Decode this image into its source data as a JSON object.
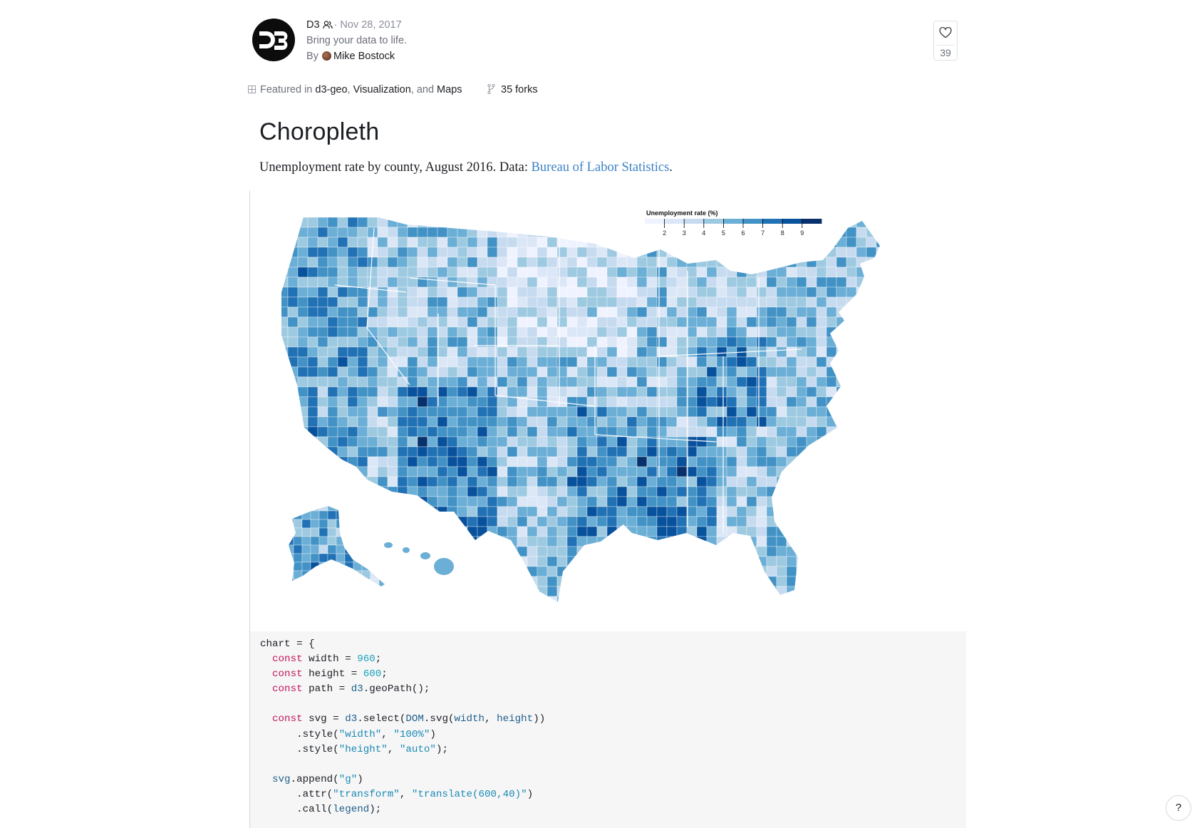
{
  "header": {
    "author_name": "D3",
    "date": "Nov 28, 2017",
    "tagline": "Bring your data to life.",
    "by_label": "By",
    "user": "Mike Bostock",
    "likes": "39",
    "featured_prefix": "Featured in",
    "featured_tags": [
      "d3-geo",
      "Visualization",
      "Maps"
    ],
    "featured_sep1": ",",
    "featured_and": ", and",
    "forks": "35 forks"
  },
  "notebook": {
    "title": "Choropleth",
    "subtitle_text": "Unemployment rate by county, August 2016. Data:",
    "subtitle_link": "Bureau of Labor Statistics",
    "subtitle_end": "."
  },
  "chart_data": {
    "type": "heatmap",
    "title": "Unemployment rate (%)",
    "legend_ticks": [
      "2",
      "3",
      "4",
      "5",
      "6",
      "7",
      "8",
      "9"
    ],
    "color_scale": [
      "#eff3ff",
      "#dbe7f6",
      "#c6dbef",
      "#9ecae1",
      "#6baed6",
      "#4292c6",
      "#2171b5",
      "#08519c",
      "#08306b"
    ]
  },
  "code_lines": [
    "chart = {",
    "  const width = 960;",
    "  const height = 600;",
    "  const path = d3.geoPath();",
    "",
    "  const svg = d3.select(DOM.svg(width, height))",
    "      .style(\"width\", \"100%\")",
    "      .style(\"height\", \"auto\");",
    "",
    "  svg.append(\"g\")",
    "      .attr(\"transform\", \"translate(600,40)\")",
    "      .call(legend);"
  ],
  "help": "?"
}
